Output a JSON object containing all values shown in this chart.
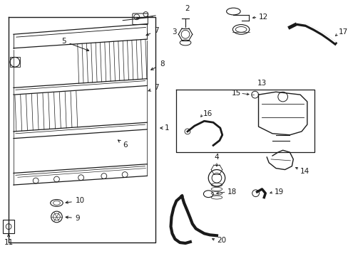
{
  "background_color": "#ffffff",
  "line_color": "#1a1a1a",
  "label_color": "#000000",
  "fs": 7.5,
  "lw": 0.9
}
